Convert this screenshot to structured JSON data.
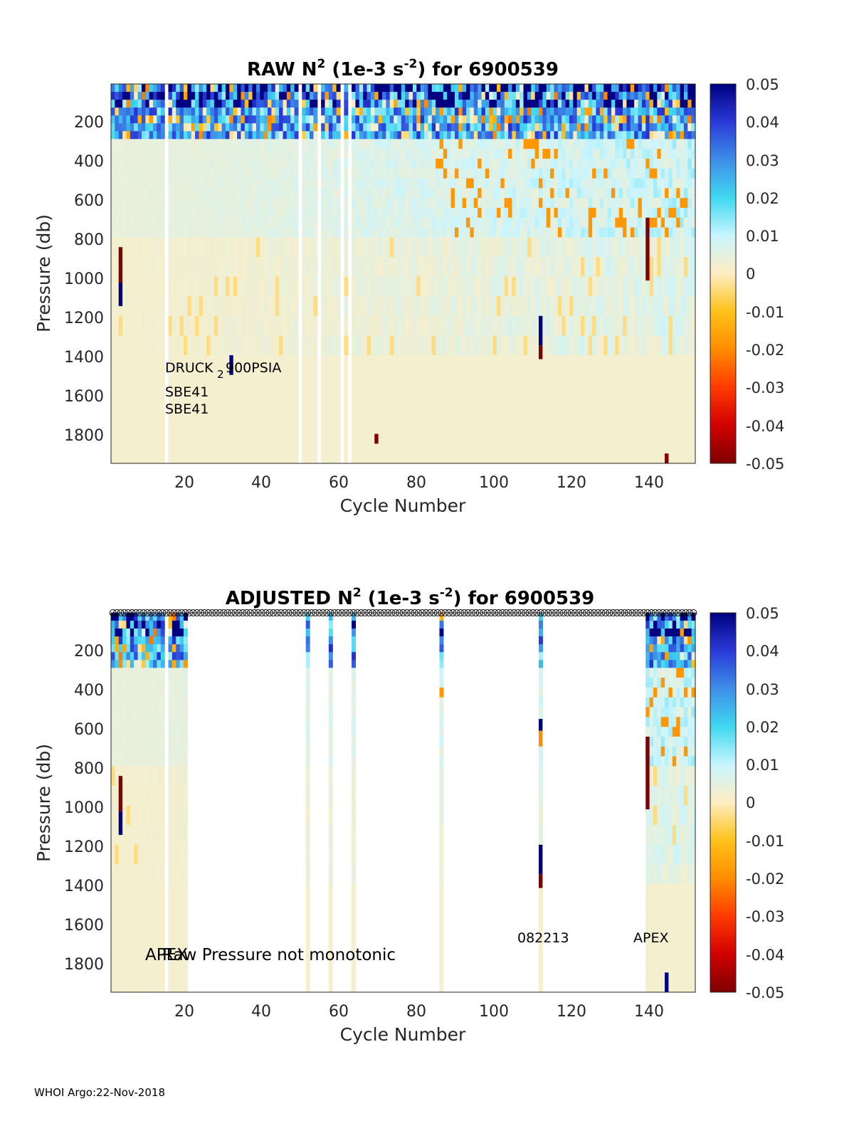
{
  "figure": {
    "footer": "WHOI Argo:22-Nov-2018"
  },
  "colorbar": {
    "ticks": [
      "0.05",
      "0.04",
      "0.03",
      "0.02",
      "0.01",
      "0",
      "-0.01",
      "-0.02",
      "-0.03",
      "-0.04",
      "-0.05"
    ],
    "min": -0.05,
    "max": 0.05,
    "colors": [
      "#7f0000",
      "#d10000",
      "#ff3a00",
      "#ff8c00",
      "#ffc21a",
      "#ffedc2",
      "#c8f5ff",
      "#40d8f0",
      "#3e8ee8",
      "#2a3ad8",
      "#000080"
    ]
  },
  "chart_data": [
    {
      "type": "heatmap",
      "title_pre": "RAW N",
      "title_sup1": "2",
      "title_mid": " (1e-3 s",
      "title_sup2": "-2",
      "title_post": ") for 6900539",
      "xlabel": "Cycle Number",
      "ylabel": "Pressure (db)",
      "xlim": [
        1,
        153
      ],
      "ylim": [
        1950,
        20
      ],
      "xticks": [
        "20",
        "40",
        "60",
        "80",
        "100",
        "120",
        "140"
      ],
      "yticks": [
        "200",
        "400",
        "600",
        "800",
        "1000",
        "1200",
        "1400",
        "1600",
        "1800"
      ],
      "annotations": [
        "DRUCK",
        "2",
        "900PSIA",
        "SBE41",
        "SBE41"
      ],
      "annotation_positions": "lower-left",
      "features": {
        "surface_max_depth_db": 300,
        "pressure_coverage_full": true,
        "spike_columns": [
          {
            "cycle": 3,
            "from_db": 850,
            "to_db": 1030,
            "value": -0.05
          },
          {
            "cycle": 3,
            "from_db": 1030,
            "to_db": 1150,
            "value": 0.05
          },
          {
            "cycle": 32,
            "from_db": 1400,
            "to_db": 1500,
            "value": 0.05
          },
          {
            "cycle": 70,
            "from_db": 1800,
            "to_db": 1850,
            "value": -0.05
          },
          {
            "cycle": 113,
            "from_db": 1200,
            "to_db": 1350,
            "value": 0.05
          },
          {
            "cycle": 113,
            "from_db": 1350,
            "to_db": 1420,
            "value": -0.05
          },
          {
            "cycle": 141,
            "from_db": 700,
            "to_db": 1020,
            "value": -0.05
          },
          {
            "cycle": 146,
            "from_db": 1900,
            "to_db": 1950,
            "value": -0.05
          }
        ]
      }
    },
    {
      "type": "heatmap",
      "title_pre": "ADJUSTED N",
      "title_sup1": "2",
      "title_mid": " (1e-3 s",
      "title_sup2": "-2",
      "title_post": ") for 6900539",
      "xlabel": "Cycle Number",
      "ylabel": "Pressure (db)",
      "xlim": [
        1,
        153
      ],
      "ylim": [
        1950,
        20
      ],
      "xticks": [
        "20",
        "40",
        "60",
        "80",
        "100",
        "120",
        "140"
      ],
      "yticks": [
        "200",
        "400",
        "600",
        "800",
        "1000",
        "1200",
        "1400",
        "1600",
        "1800"
      ],
      "annotations": [
        "APEX",
        "Raw Pressure not monotonic",
        "082213",
        "APEX"
      ],
      "top_markers": "open circles at every cycle along the top axis",
      "features": {
        "valid_cycle_ranges": [
          [
            1,
            20
          ],
          [
            52,
            52
          ],
          [
            58,
            58
          ],
          [
            64,
            64
          ],
          [
            87,
            87
          ],
          [
            113,
            113
          ],
          [
            141,
            153
          ]
        ],
        "spike_columns": [
          {
            "cycle": 3,
            "from_db": 850,
            "to_db": 1030,
            "value": -0.05
          },
          {
            "cycle": 3,
            "from_db": 1030,
            "to_db": 1150,
            "value": 0.05
          },
          {
            "cycle": 113,
            "from_db": 560,
            "to_db": 620,
            "value": 0.05
          },
          {
            "cycle": 113,
            "from_db": 620,
            "to_db": 700,
            "value": -0.02
          },
          {
            "cycle": 113,
            "from_db": 1200,
            "to_db": 1350,
            "value": 0.05
          },
          {
            "cycle": 113,
            "from_db": 1350,
            "to_db": 1420,
            "value": -0.05
          },
          {
            "cycle": 141,
            "from_db": 650,
            "to_db": 1020,
            "value": -0.05
          },
          {
            "cycle": 146,
            "from_db": 1850,
            "to_db": 1950,
            "value": 0.05
          }
        ]
      }
    }
  ]
}
